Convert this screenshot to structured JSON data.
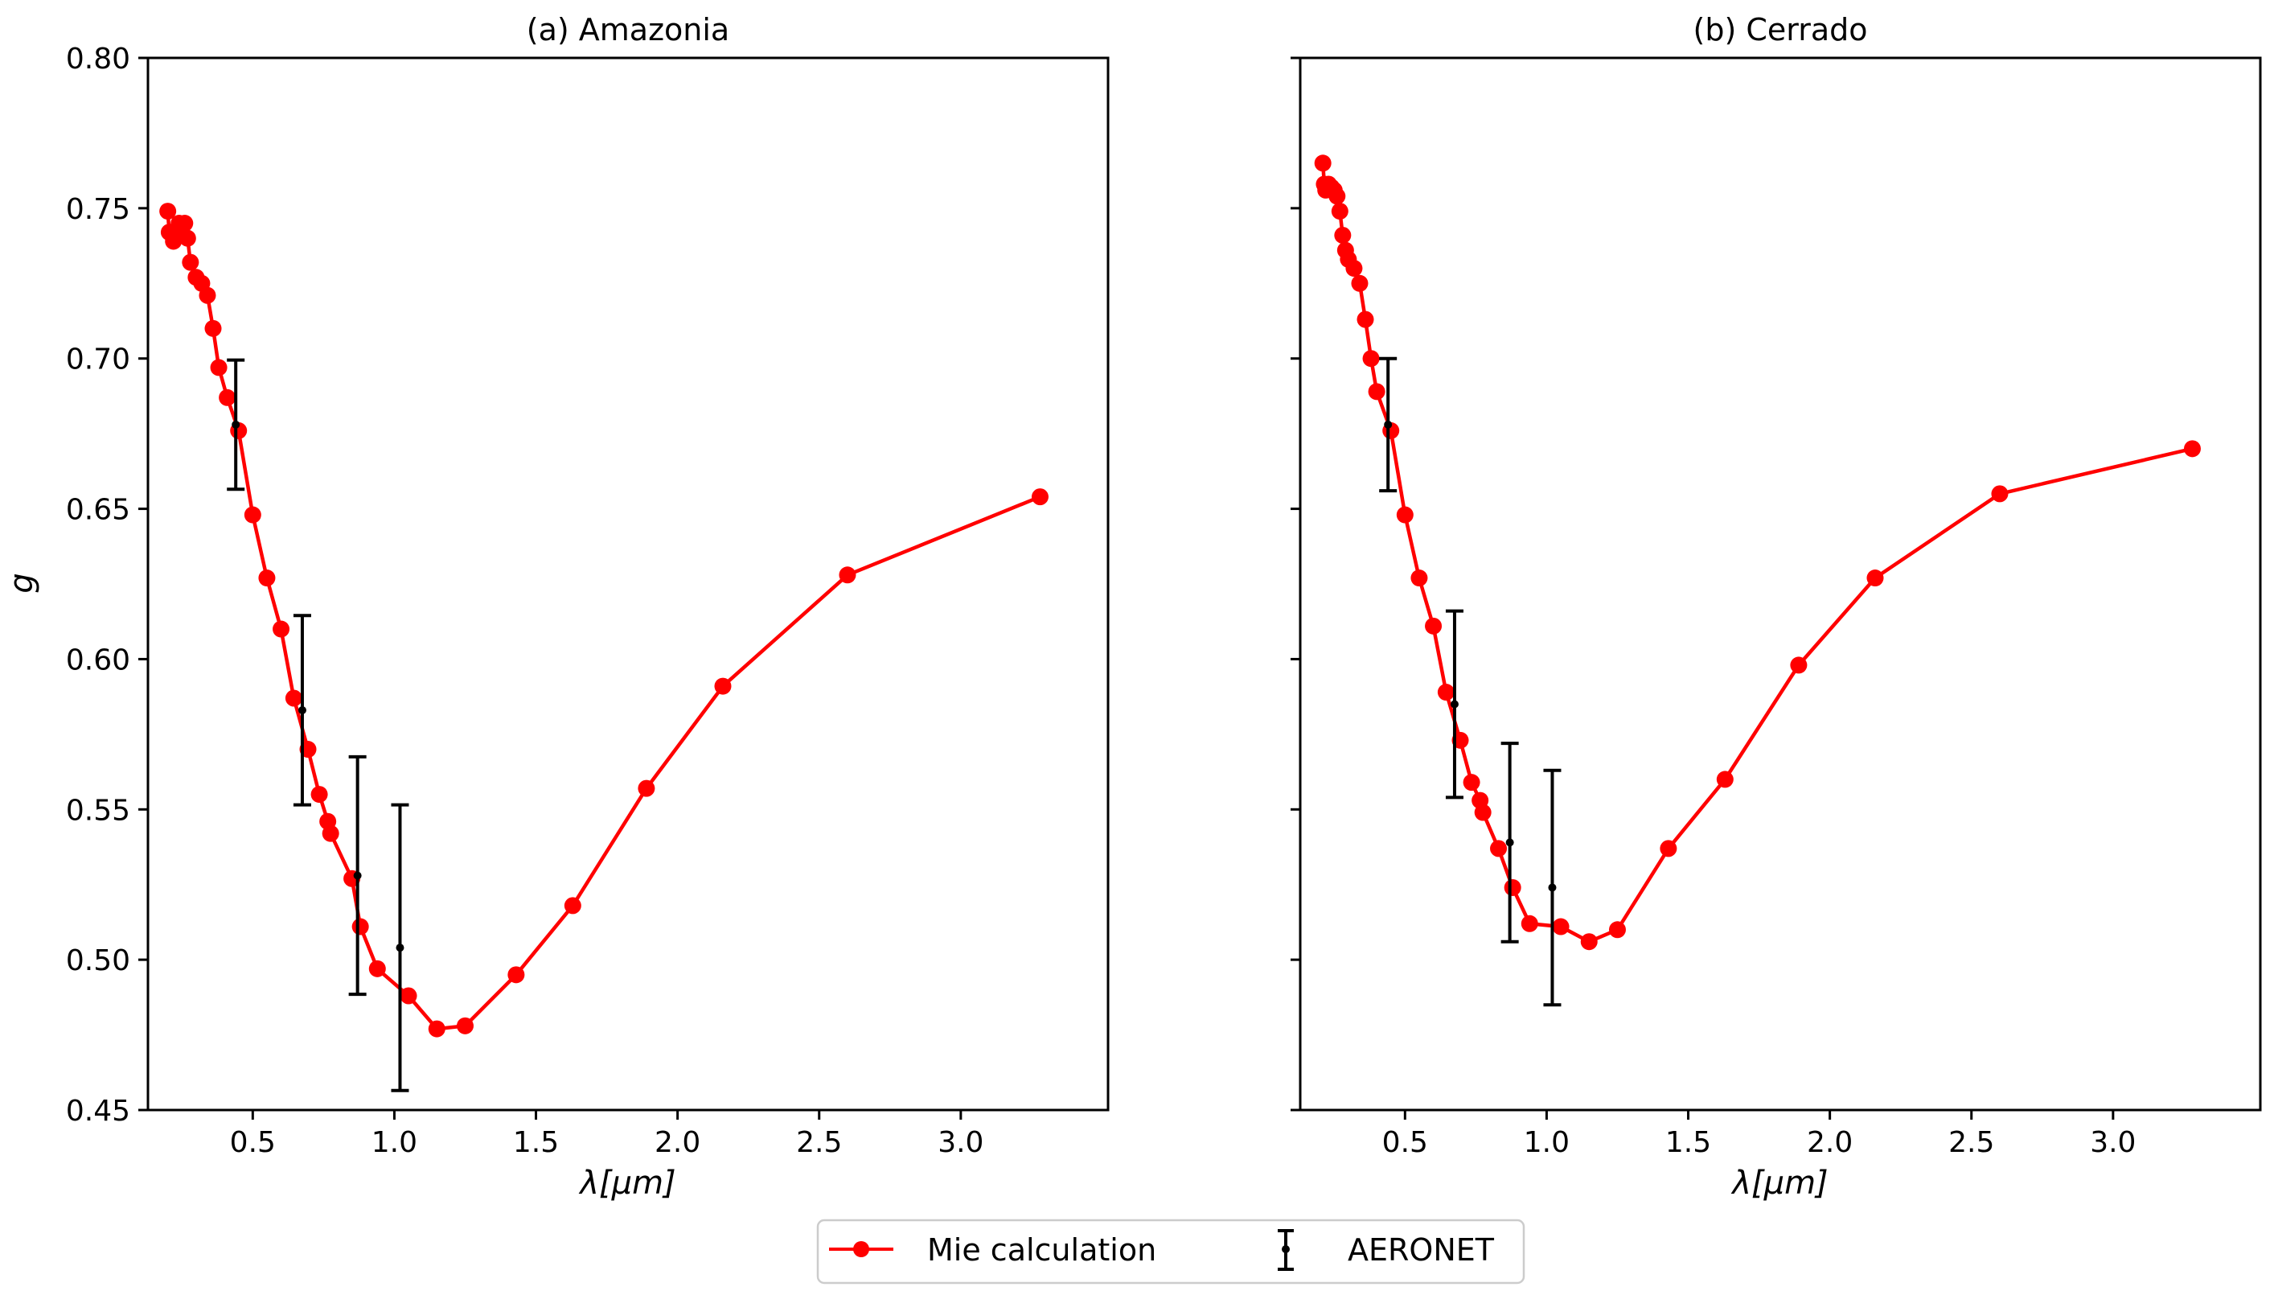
{
  "figure": {
    "ylabel": "g",
    "legend": {
      "placement": "bottom-center",
      "entries": [
        {
          "label": "Mie calculation",
          "color": "#ff0000",
          "marker": "circle-line"
        },
        {
          "label": "AERONET",
          "color": "#000000",
          "marker": "errorbar"
        }
      ]
    }
  },
  "chart_data": [
    {
      "type": "line",
      "title": "(a) Amazonia",
      "xlabel": "λ[μm]",
      "ylabel": "g",
      "xlim": [
        0.13,
        3.52
      ],
      "ylim": [
        0.45,
        0.8
      ],
      "xticks": [
        0.5,
        1.0,
        1.5,
        2.0,
        2.5,
        3.0
      ],
      "xtick_labels": [
        "0.5",
        "1.0",
        "1.5",
        "2.0",
        "2.5",
        "3.0"
      ],
      "yticks": [
        0.45,
        0.5,
        0.55,
        0.6,
        0.65,
        0.7,
        0.75,
        0.8
      ],
      "ytick_labels": [
        "0.45",
        "0.50",
        "0.55",
        "0.60",
        "0.65",
        "0.70",
        "0.75",
        "0.80"
      ],
      "series": [
        {
          "name": "Mie calculation",
          "color": "#ff0000",
          "x": [
            0.2,
            0.205,
            0.21,
            0.22,
            0.23,
            0.24,
            0.25,
            0.26,
            0.27,
            0.28,
            0.3,
            0.32,
            0.34,
            0.36,
            0.38,
            0.41,
            0.45,
            0.5,
            0.55,
            0.6,
            0.645,
            0.695,
            0.735,
            0.765,
            0.775,
            0.85,
            0.88,
            0.94,
            1.05,
            1.15,
            1.25,
            1.43,
            1.63,
            1.89,
            2.16,
            2.6,
            3.28
          ],
          "y": [
            0.749,
            0.742,
            0.742,
            0.739,
            0.742,
            0.745,
            0.742,
            0.745,
            0.74,
            0.732,
            0.727,
            0.725,
            0.721,
            0.71,
            0.697,
            0.687,
            0.676,
            0.648,
            0.627,
            0.61,
            0.587,
            0.57,
            0.555,
            0.546,
            0.542,
            0.527,
            0.511,
            0.497,
            0.488,
            0.477,
            0.478,
            0.495,
            0.518,
            0.557,
            0.591,
            0.628,
            0.654
          ]
        },
        {
          "name": "AERONET",
          "color": "#000000",
          "x": [
            0.44,
            0.675,
            0.87,
            1.02
          ],
          "y": [
            0.678,
            0.583,
            0.528,
            0.504
          ],
          "yerr": [
            0.0215,
            0.0315,
            0.0395,
            0.0475
          ]
        }
      ]
    },
    {
      "type": "line",
      "title": "(b) Cerrado",
      "xlabel": "λ[μm]",
      "ylabel": "",
      "xlim": [
        0.13,
        3.52
      ],
      "ylim": [
        0.45,
        0.8
      ],
      "xticks": [
        0.5,
        1.0,
        1.5,
        2.0,
        2.5,
        3.0
      ],
      "xtick_labels": [
        "0.5",
        "1.0",
        "1.5",
        "2.0",
        "2.5",
        "3.0"
      ],
      "yticks": [
        0.45,
        0.5,
        0.55,
        0.6,
        0.65,
        0.7,
        0.75,
        0.8
      ],
      "ytick_labels": [],
      "series": [
        {
          "name": "Mie calculation",
          "color": "#ff0000",
          "x": [
            0.21,
            0.215,
            0.22,
            0.23,
            0.24,
            0.25,
            0.26,
            0.27,
            0.28,
            0.29,
            0.3,
            0.32,
            0.34,
            0.36,
            0.38,
            0.4,
            0.45,
            0.5,
            0.55,
            0.6,
            0.645,
            0.695,
            0.735,
            0.765,
            0.775,
            0.83,
            0.88,
            0.94,
            1.05,
            1.15,
            1.25,
            1.43,
            1.63,
            1.89,
            2.16,
            2.6,
            3.28
          ],
          "y": [
            0.765,
            0.758,
            0.756,
            0.758,
            0.757,
            0.756,
            0.754,
            0.749,
            0.741,
            0.736,
            0.733,
            0.73,
            0.725,
            0.713,
            0.7,
            0.689,
            0.676,
            0.648,
            0.627,
            0.611,
            0.589,
            0.573,
            0.559,
            0.553,
            0.549,
            0.537,
            0.524,
            0.512,
            0.511,
            0.506,
            0.51,
            0.537,
            0.56,
            0.598,
            0.627,
            0.655,
            0.67
          ]
        },
        {
          "name": "AERONET",
          "color": "#000000",
          "x": [
            0.44,
            0.675,
            0.87,
            1.02
          ],
          "y": [
            0.678,
            0.585,
            0.539,
            0.524
          ],
          "yerr": [
            0.022,
            0.031,
            0.033,
            0.039
          ]
        }
      ]
    }
  ]
}
